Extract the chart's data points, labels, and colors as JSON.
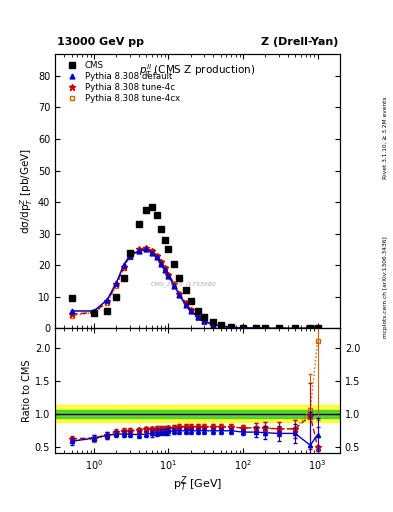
{
  "title_top": "13000 GeV pp",
  "title_right": "Z (Drell-Yan)",
  "plot_title": "$p_T^{ll}$ (CMS Z production)",
  "ylabel_main": "dσ/dp$_T^Z$ [pb/GeV]",
  "ylabel_ratio": "Ratio to CMS",
  "xlabel": "p$_T^Z$ [GeV]",
  "right_label_top": "Rivet 3.1.10, ≥ 3.2M events",
  "right_label_bottom": "mcplots.cern.ch [arXiv:1306.3436]",
  "watermark": "CMS_2019_I1755680",
  "cms_data_x": [
    0.5,
    1.0,
    1.5,
    2.0,
    2.5,
    3.0,
    4.0,
    5.0,
    6.0,
    7.0,
    8.0,
    9.0,
    10.0,
    12.0,
    14.0,
    17.0,
    20.0,
    25.0,
    30.0,
    40.0,
    50.0,
    70.0,
    100.0,
    150.0,
    200.0,
    300.0,
    500.0,
    800.0,
    1000.0
  ],
  "cms_data_y": [
    9.5,
    5.0,
    5.5,
    10.0,
    16.0,
    24.0,
    33.0,
    37.5,
    38.5,
    36.0,
    31.5,
    28.0,
    25.0,
    20.5,
    16.0,
    12.0,
    8.5,
    5.5,
    3.5,
    2.0,
    1.1,
    0.5,
    0.2,
    0.08,
    0.035,
    0.012,
    0.003,
    0.001,
    0.0005
  ],
  "pythia_default_x": [
    0.5,
    1.0,
    1.5,
    2.0,
    2.5,
    3.0,
    4.0,
    5.0,
    6.0,
    7.0,
    8.0,
    9.0,
    10.0,
    12.0,
    14.0,
    17.0,
    20.0,
    25.0,
    30.0,
    40.0,
    50.0,
    70.0,
    100.0,
    150.0,
    200.0,
    300.0,
    500.0,
    800.0,
    1000.0
  ],
  "pythia_default_y": [
    5.5,
    5.5,
    9.0,
    14.5,
    20.0,
    23.0,
    24.5,
    25.0,
    24.0,
    22.5,
    20.5,
    18.5,
    16.5,
    13.5,
    10.5,
    7.5,
    5.5,
    3.5,
    2.2,
    1.2,
    0.65,
    0.28,
    0.1,
    0.04,
    0.018,
    0.006,
    0.0015,
    0.0004,
    0.0002
  ],
  "pythia_tune4c_x": [
    0.5,
    1.0,
    1.5,
    2.0,
    2.5,
    3.0,
    4.0,
    5.0,
    6.0,
    7.0,
    8.0,
    9.0,
    10.0,
    12.0,
    14.0,
    17.0,
    20.0,
    25.0,
    30.0,
    40.0,
    50.0,
    70.0,
    100.0,
    150.0,
    200.0,
    300.0,
    500.0,
    800.0,
    1000.0
  ],
  "pythia_tune4c_y": [
    4.5,
    5.0,
    8.5,
    14.0,
    19.5,
    23.0,
    25.0,
    25.5,
    24.5,
    23.0,
    21.0,
    19.0,
    17.0,
    14.0,
    11.0,
    8.0,
    5.8,
    3.7,
    2.4,
    1.3,
    0.72,
    0.31,
    0.11,
    0.044,
    0.019,
    0.0065,
    0.0016,
    0.0004,
    0.0002
  ],
  "pythia_tune4cx_x": [
    0.5,
    1.0,
    1.5,
    2.0,
    2.5,
    3.0,
    4.0,
    5.0,
    6.0,
    7.0,
    8.0,
    9.0,
    10.0,
    12.0,
    14.0,
    17.0,
    20.0,
    25.0,
    30.0,
    40.0,
    50.0,
    70.0,
    100.0,
    150.0,
    200.0,
    300.0,
    500.0,
    800.0,
    1000.0
  ],
  "pythia_tune4cx_y": [
    4.0,
    5.0,
    8.0,
    13.5,
    19.0,
    22.5,
    24.5,
    25.0,
    24.5,
    23.0,
    21.0,
    19.0,
    17.0,
    14.0,
    11.0,
    8.0,
    5.8,
    3.7,
    2.4,
    1.3,
    0.72,
    0.31,
    0.11,
    0.044,
    0.019,
    0.0065,
    0.0016,
    0.0004,
    0.0002
  ],
  "ratio_default_y": [
    0.58,
    0.63,
    0.67,
    0.69,
    0.69,
    0.69,
    0.68,
    0.69,
    0.7,
    0.71,
    0.72,
    0.72,
    0.73,
    0.74,
    0.74,
    0.74,
    0.74,
    0.74,
    0.74,
    0.74,
    0.74,
    0.74,
    0.72,
    0.72,
    0.71,
    0.7,
    0.7,
    0.52,
    0.68
  ],
  "ratio_tune4c_y": [
    0.62,
    0.63,
    0.68,
    0.72,
    0.74,
    0.74,
    0.75,
    0.76,
    0.76,
    0.77,
    0.77,
    0.77,
    0.78,
    0.79,
    0.8,
    0.8,
    0.8,
    0.8,
    0.8,
    0.8,
    0.8,
    0.8,
    0.78,
    0.79,
    0.78,
    0.77,
    0.77,
    0.97,
    0.5
  ],
  "ratio_tune4cx_y": [
    0.6,
    0.61,
    0.66,
    0.7,
    0.73,
    0.74,
    0.75,
    0.76,
    0.76,
    0.77,
    0.77,
    0.77,
    0.78,
    0.79,
    0.8,
    0.8,
    0.8,
    0.8,
    0.8,
    0.8,
    0.8,
    0.8,
    0.78,
    0.79,
    0.78,
    0.77,
    0.77,
    1.05,
    2.1
  ],
  "ratio_default_yerr": [
    0.05,
    0.05,
    0.05,
    0.05,
    0.05,
    0.05,
    0.05,
    0.05,
    0.05,
    0.05,
    0.05,
    0.05,
    0.05,
    0.05,
    0.05,
    0.05,
    0.05,
    0.05,
    0.05,
    0.05,
    0.05,
    0.05,
    0.05,
    0.08,
    0.1,
    0.12,
    0.15,
    0.5,
    0.25
  ],
  "ratio_tune4c_yerr": [
    0.04,
    0.04,
    0.04,
    0.04,
    0.04,
    0.04,
    0.04,
    0.04,
    0.04,
    0.04,
    0.04,
    0.04,
    0.04,
    0.04,
    0.04,
    0.04,
    0.04,
    0.04,
    0.04,
    0.04,
    0.04,
    0.04,
    0.05,
    0.07,
    0.09,
    0.11,
    0.14,
    0.5,
    0.3
  ],
  "ratio_tune4cx_yerr": [
    0.04,
    0.04,
    0.04,
    0.04,
    0.04,
    0.04,
    0.04,
    0.04,
    0.04,
    0.04,
    0.04,
    0.04,
    0.04,
    0.04,
    0.04,
    0.04,
    0.04,
    0.04,
    0.04,
    0.04,
    0.04,
    0.04,
    0.05,
    0.07,
    0.09,
    0.11,
    0.14,
    0.55,
    1.2
  ],
  "color_cms": "#000000",
  "color_default": "#0000cc",
  "color_tune4c": "#cc0000",
  "color_tune4cx": "#cc6600",
  "ylim_main": [
    0,
    87
  ],
  "ylim_ratio": [
    0.4,
    2.3
  ],
  "xlim": [
    0.3,
    2000
  ],
  "yticks_main": [
    0,
    10,
    20,
    30,
    40,
    50,
    60,
    70,
    80
  ],
  "yticks_ratio": [
    0.5,
    1.0,
    1.5,
    2.0
  ],
  "band_yellow": [
    0.88,
    1.13
  ],
  "band_green": [
    0.94,
    1.06
  ],
  "background_color": "#ffffff"
}
